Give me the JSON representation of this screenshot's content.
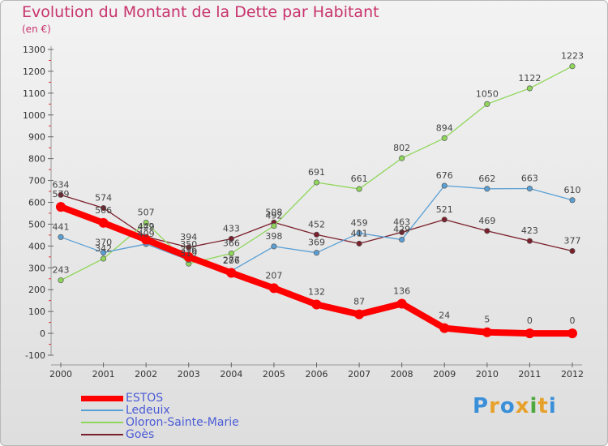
{
  "header": {
    "title": "Evolution du Montant de la Dette par Habitant",
    "subtitle": "(en €)"
  },
  "logo": {
    "text": "Proxiti",
    "letters": [
      {
        "ch": "P",
        "color": "#3a8fd9"
      },
      {
        "ch": "r",
        "color": "#e7a12a"
      },
      {
        "ch": "o",
        "color": "#3a8fd9"
      },
      {
        "ch": "x",
        "color": "#e7a12a"
      },
      {
        "ch": "i",
        "color": "#4fa83d"
      },
      {
        "ch": "t",
        "color": "#e7a12a"
      },
      {
        "ch": "i",
        "color": "#3a8fd9"
      }
    ]
  },
  "chart_data": {
    "type": "line",
    "title": "Evolution du Montant de la Dette par Habitant",
    "subtitle": "(en €)",
    "xlabel": "",
    "ylabel": "",
    "categories": [
      "2000",
      "2001",
      "2002",
      "2003",
      "2004",
      "2005",
      "2006",
      "2007",
      "2008",
      "2009",
      "2010",
      "2011",
      "2012"
    ],
    "ylim": [
      -100,
      1300
    ],
    "yticks": [
      -100,
      0,
      100,
      200,
      300,
      400,
      500,
      600,
      700,
      800,
      900,
      1000,
      1100,
      1200,
      1300
    ],
    "grid": false,
    "legend_position": "bottom-left",
    "series": [
      {
        "name": "ESTOS",
        "color": "#ff0000",
        "emphasis": true,
        "values": [
          579,
          506,
          429,
          350,
          277,
          207,
          132,
          87,
          136,
          24,
          5,
          0,
          0
        ]
      },
      {
        "name": "Ledeuix",
        "color": "#5a9fd4",
        "values": [
          441,
          370,
          409,
          336,
          286,
          398,
          369,
          459,
          429,
          676,
          662,
          663,
          610
        ]
      },
      {
        "name": "Oloron-Sainte-Marie",
        "color": "#8fd65a",
        "values": [
          243,
          342,
          507,
          319,
          366,
          492,
          691,
          661,
          802,
          894,
          1050,
          1122,
          1223
        ]
      },
      {
        "name": "Goès",
        "color": "#7a1f2b",
        "values": [
          634,
          574,
          442,
          394,
          433,
          508,
          452,
          411,
          463,
          521,
          469,
          423,
          377
        ]
      }
    ]
  }
}
